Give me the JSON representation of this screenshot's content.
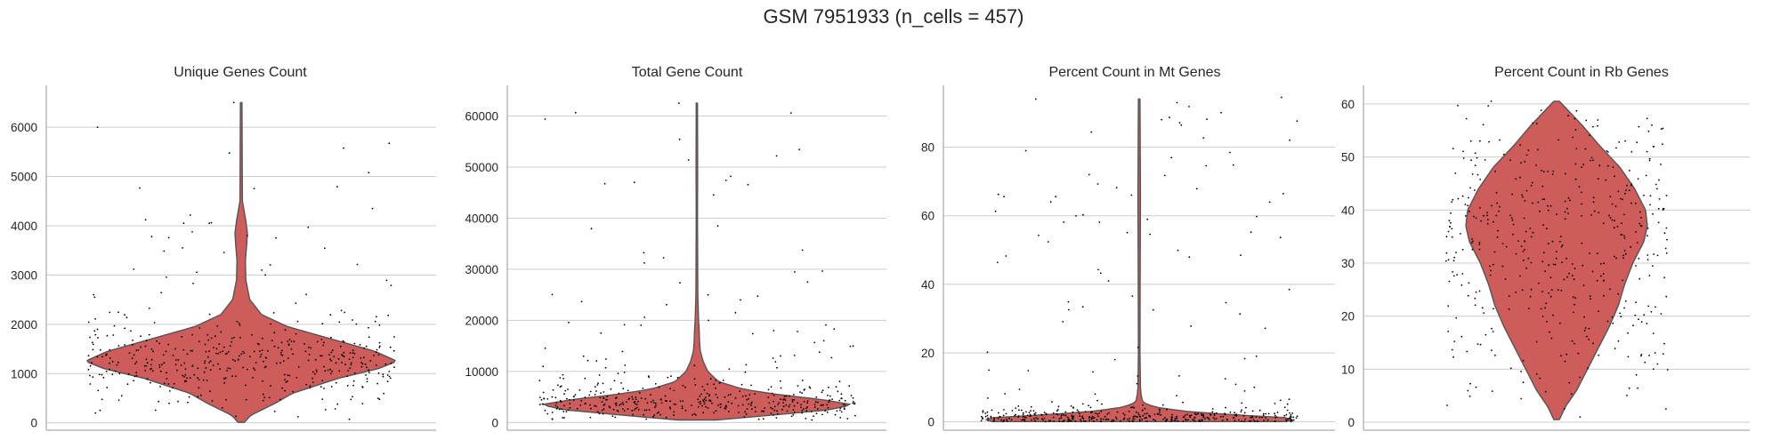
{
  "figure": {
    "suptitle": "GSM 7951933 (n_cells = 457)"
  },
  "colors": {
    "violin_fill": "#cd5c5a",
    "violin_edge": "#555555",
    "points": "#000000",
    "grid": "#cccccc",
    "axis": "#aaaaaa"
  },
  "chart_data": [
    {
      "type": "violin",
      "title": "Unique Genes Count",
      "n_points": 457,
      "grid": true,
      "ylim": [
        -150,
        6850
      ],
      "yticks": [
        0,
        1000,
        2000,
        3000,
        4000,
        5000,
        6000
      ],
      "ytick_labels": [
        "0",
        "1000",
        "2000",
        "3000",
        "4000",
        "5000",
        "6000"
      ],
      "data_range": [
        10,
        6500
      ],
      "density_profile": [
        [
          10,
          0.02
        ],
        [
          150,
          0.06
        ],
        [
          400,
          0.22
        ],
        [
          600,
          0.33
        ],
        [
          900,
          0.62
        ],
        [
          1100,
          0.88
        ],
        [
          1250,
          1.0
        ],
        [
          1450,
          0.86
        ],
        [
          1700,
          0.58
        ],
        [
          1950,
          0.3
        ],
        [
          2200,
          0.13
        ],
        [
          2500,
          0.055
        ],
        [
          2900,
          0.03
        ],
        [
          3300,
          0.027
        ],
        [
          3600,
          0.035
        ],
        [
          3850,
          0.04
        ],
        [
          4100,
          0.03
        ],
        [
          4500,
          0.008
        ],
        [
          5000,
          0.007
        ],
        [
          6500,
          0.005
        ]
      ],
      "outliers": [
        6500,
        6000,
        5080,
        4350,
        4050,
        4050,
        3800,
        3780,
        3550,
        3100,
        3000
      ]
    },
    {
      "type": "violin",
      "title": "Total Gene Count",
      "n_points": 457,
      "grid": true,
      "ylim": [
        -1500,
        66000
      ],
      "yticks": [
        0,
        10000,
        20000,
        30000,
        40000,
        50000,
        60000
      ],
      "ytick_labels": [
        "0",
        "10000",
        "20000",
        "30000",
        "40000",
        "50000",
        "60000"
      ],
      "data_range": [
        500,
        62500
      ],
      "density_profile": [
        [
          500,
          0.12
        ],
        [
          1500,
          0.5
        ],
        [
          2500,
          0.85
        ],
        [
          3500,
          1.0
        ],
        [
          4500,
          0.8
        ],
        [
          5500,
          0.52
        ],
        [
          6500,
          0.3
        ],
        [
          8000,
          0.14
        ],
        [
          10000,
          0.07
        ],
        [
          12000,
          0.04
        ],
        [
          14000,
          0.022
        ],
        [
          16000,
          0.017
        ],
        [
          18000,
          0.015
        ],
        [
          20000,
          0.011
        ],
        [
          25000,
          0.006
        ],
        [
          40000,
          0.004
        ],
        [
          50000,
          0.005
        ],
        [
          62500,
          0.004
        ]
      ],
      "outliers": [
        62500,
        47000,
        38500,
        27500,
        25000,
        21500,
        20000,
        18000,
        17500,
        16000
      ]
    },
    {
      "type": "violin",
      "title": "Percent Count in Mt Genes",
      "n_points": 457,
      "grid": true,
      "ylim": [
        -2.5,
        98
      ],
      "yticks": [
        0,
        20,
        40,
        60,
        80
      ],
      "ytick_labels": [
        "0",
        "20",
        "40",
        "60",
        "80"
      ],
      "data_range": [
        0,
        94
      ],
      "density_profile": [
        [
          0,
          0.94
        ],
        [
          1,
          1.0
        ],
        [
          2,
          0.6
        ],
        [
          3,
          0.3
        ],
        [
          4,
          0.13
        ],
        [
          5,
          0.05
        ],
        [
          6,
          0.02
        ],
        [
          8,
          0.012
        ],
        [
          10,
          0.008
        ],
        [
          20,
          0.005
        ],
        [
          40,
          0.006
        ],
        [
          66,
          0.008
        ],
        [
          94,
          0.005
        ]
      ],
      "outliers": [
        94.5,
        66,
        38.5,
        12.5,
        10
      ]
    },
    {
      "type": "violin",
      "title": "Percent Count in Rb Genes",
      "n_points": 457,
      "grid": true,
      "ylim": [
        -1.5,
        63.5
      ],
      "yticks": [
        0,
        10,
        20,
        30,
        40,
        50,
        60
      ],
      "ytick_labels": [
        "0",
        "10",
        "20",
        "30",
        "40",
        "50",
        "60"
      ],
      "data_range": [
        0.5,
        60.5
      ],
      "density_profile": [
        [
          0.5,
          0.03
        ],
        [
          3,
          0.1
        ],
        [
          6,
          0.22
        ],
        [
          10,
          0.34
        ],
        [
          14,
          0.46
        ],
        [
          18,
          0.58
        ],
        [
          22,
          0.68
        ],
        [
          26,
          0.75
        ],
        [
          30,
          0.84
        ],
        [
          34,
          0.96
        ],
        [
          37,
          1.0
        ],
        [
          40,
          0.98
        ],
        [
          44,
          0.86
        ],
        [
          48,
          0.7
        ],
        [
          52,
          0.48
        ],
        [
          56,
          0.28
        ],
        [
          58,
          0.17
        ],
        [
          60.5,
          0.03
        ]
      ],
      "outliers": [
        60.5,
        56,
        53,
        51,
        2.5,
        1
      ]
    }
  ]
}
